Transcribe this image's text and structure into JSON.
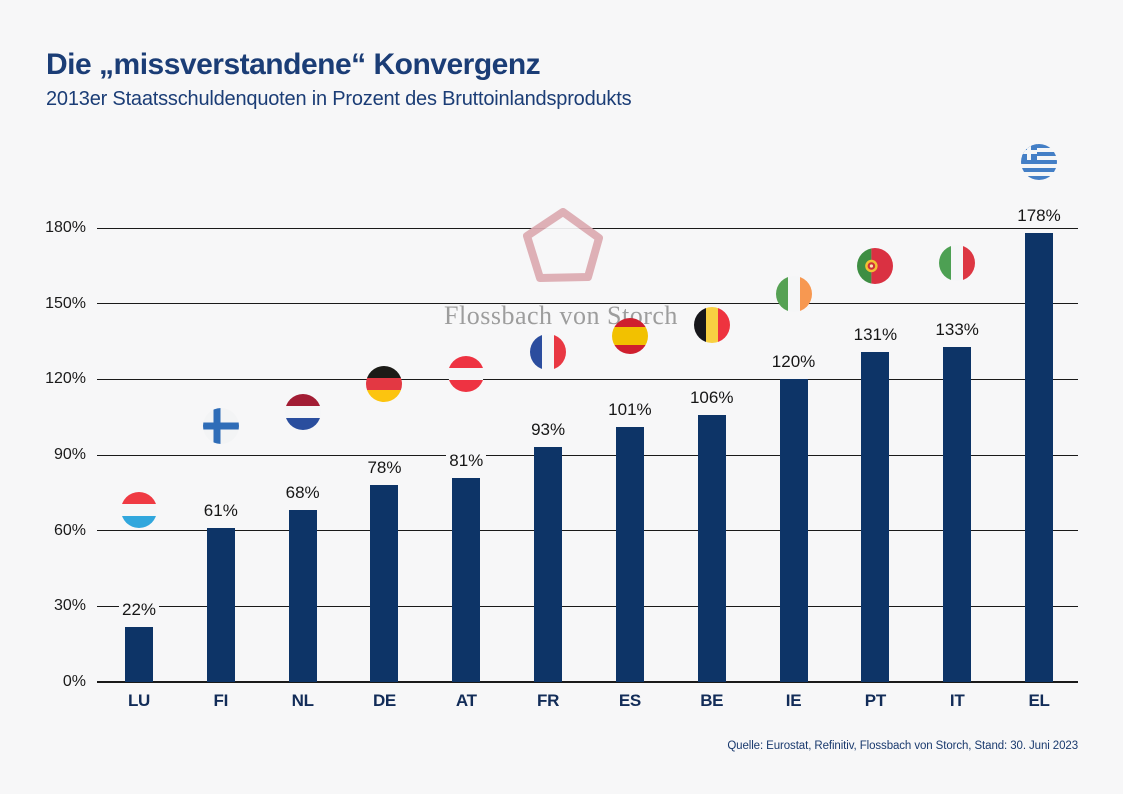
{
  "header": {
    "title": "Die „missverstandene“ Konvergenz",
    "subtitle": "2013er Staatsschuldenquoten in Prozent des Bruttoinlandsprodukts"
  },
  "watermark": {
    "text": "Flossbach von Storch",
    "logo": "flossbach-pentagon-logo-icon"
  },
  "footer": {
    "source": "Quelle: Eurostat, Refinitiv, Flossbach von Storch, Stand: 30. Juni 2023"
  },
  "chart_data": {
    "type": "bar",
    "title": "Die „missverstandene“ Konvergenz",
    "subtitle": "2013er Staatsschuldenquoten in Prozent des Bruttoinlandsprodukts",
    "xlabel": "",
    "ylabel": "",
    "categories": [
      "LU",
      "FI",
      "NL",
      "DE",
      "AT",
      "FR",
      "ES",
      "BE",
      "IE",
      "PT",
      "IT",
      "EL"
    ],
    "values": [
      22,
      61,
      68,
      78,
      81,
      93,
      101,
      106,
      120,
      131,
      133,
      178
    ],
    "value_labels": [
      "22%",
      "61%",
      "68%",
      "78%",
      "81%",
      "93%",
      "101%",
      "106%",
      "120%",
      "131%",
      "133%",
      "178%"
    ],
    "flag_icons": [
      "luxembourg-flag-icon",
      "finland-flag-icon",
      "netherlands-flag-icon",
      "germany-flag-icon",
      "austria-flag-icon",
      "france-flag-icon",
      "spain-flag-icon",
      "belgium-flag-icon",
      "ireland-flag-icon",
      "portugal-flag-icon",
      "italy-flag-icon",
      "greece-flag-icon"
    ],
    "flag_marker_y_pct": [
      68,
      101.5,
      107,
      118,
      122,
      131,
      137,
      141.5,
      154,
      165,
      166,
      206
    ],
    "ylim": [
      0,
      180
    ],
    "ytick_labels": [
      "0%",
      "30%",
      "60%",
      "90%",
      "120%",
      "150%",
      "180%"
    ],
    "grid": true,
    "legend": false
  },
  "colors": {
    "background": "#f7f7f8",
    "bar": "#0d3467",
    "heading": "#1b3d76",
    "grid": "#1a1a1a",
    "axis_text": "#1a1a1a",
    "category_text": "#122c58",
    "value_text": "#161616",
    "source_text": "#1a3a6e",
    "watermark_logo": "#dcaab1",
    "watermark_text": "#9d9d9d"
  }
}
